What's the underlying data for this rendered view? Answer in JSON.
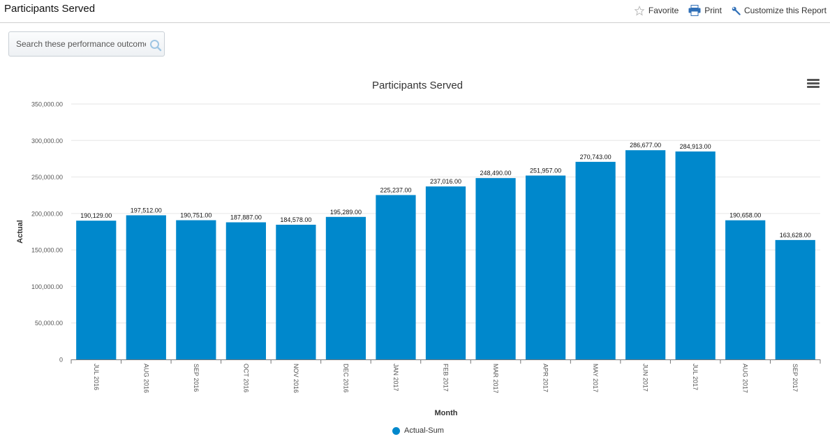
{
  "page": {
    "title": "Participants Served"
  },
  "actions": [
    {
      "label": "Favorite",
      "icon": "star-icon"
    },
    {
      "label": "Print",
      "icon": "printer-icon"
    },
    {
      "label": "Customize this Report",
      "icon": "wrench-icon"
    }
  ],
  "search": {
    "placeholder": "Search these performance outcomes",
    "value": ""
  },
  "menu": {
    "icon": "hamburger-menu-icon"
  },
  "colors": {
    "bar": "#0088cc",
    "grid": "#e6e6e6",
    "axis": "#777777"
  },
  "chart_data": {
    "type": "bar",
    "title": "Participants Served",
    "xlabel": "Month",
    "ylabel": "Actual",
    "categories": [
      "JUL 2016",
      "AUG 2016",
      "SEP 2016",
      "OCT 2016",
      "NOV 2016",
      "DEC 2016",
      "JAN 2017",
      "FEB 2017",
      "MAR 2017",
      "APR 2017",
      "MAY 2017",
      "JUN 2017",
      "JUL 2017",
      "AUG 2017",
      "SEP 2017"
    ],
    "series": [
      {
        "name": "Actual-Sum",
        "values": [
          190129,
          197512,
          190751,
          187887,
          184578,
          195289,
          225237,
          237016,
          248490,
          251957,
          270743,
          286677,
          284913,
          190658,
          163628
        ],
        "labels": [
          "190,129.00",
          "197,512.00",
          "190,751.00",
          "187,887.00",
          "184,578.00",
          "195,289.00",
          "225,237.00",
          "237,016.00",
          "248,490.00",
          "251,957.00",
          "270,743.00",
          "286,677.00",
          "284,913.00",
          "190,658.00",
          "163,628.00"
        ]
      }
    ],
    "ylim": [
      0,
      350000
    ],
    "yticks": [
      0,
      50000,
      100000,
      150000,
      200000,
      250000,
      300000,
      350000
    ],
    "ytick_labels": [
      "0",
      "50,000.00",
      "100,000.00",
      "150,000.00",
      "200,000.00",
      "250,000.00",
      "300,000.00",
      "350,000.00"
    ],
    "grid": true,
    "legend": {
      "position": "bottom-center",
      "entries": [
        "Actual-Sum"
      ]
    }
  }
}
